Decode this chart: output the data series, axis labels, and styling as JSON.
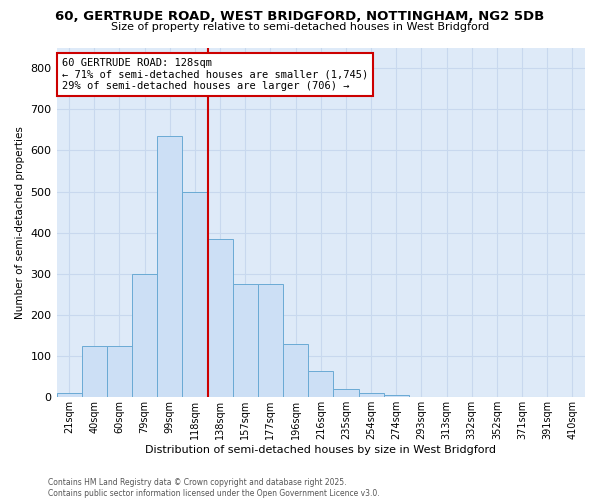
{
  "title_line1": "60, GERTRUDE ROAD, WEST BRIDGFORD, NOTTINGHAM, NG2 5DB",
  "title_line2": "Size of property relative to semi-detached houses in West Bridgford",
  "xlabel": "Distribution of semi-detached houses by size in West Bridgford",
  "ylabel": "Number of semi-detached properties",
  "footer_line1": "Contains HM Land Registry data © Crown copyright and database right 2025.",
  "footer_line2": "Contains public sector information licensed under the Open Government Licence v3.0.",
  "bin_labels": [
    "21sqm",
    "40sqm",
    "60sqm",
    "79sqm",
    "99sqm",
    "118sqm",
    "138sqm",
    "157sqm",
    "177sqm",
    "196sqm",
    "216sqm",
    "235sqm",
    "254sqm",
    "274sqm",
    "293sqm",
    "313sqm",
    "332sqm",
    "352sqm",
    "371sqm",
    "391sqm",
    "410sqm"
  ],
  "bar_values": [
    10,
    125,
    125,
    300,
    635,
    500,
    385,
    275,
    275,
    130,
    65,
    20,
    10,
    5,
    0,
    0,
    0,
    0,
    0,
    0,
    0
  ],
  "bar_color": "#ccdff5",
  "bar_edge_color": "#6aaad4",
  "property_line_x": 5.5,
  "annotation_text_line1": "60 GERTRUDE ROAD: 128sqm",
  "annotation_text_line2": "← 71% of semi-detached houses are smaller (1,745)",
  "annotation_text_line3": "29% of semi-detached houses are larger (706) →",
  "annotation_box_color": "#ffffff",
  "annotation_box_edge": "#cc0000",
  "vline_color": "#cc0000",
  "ylim": [
    0,
    850
  ],
  "yticks": [
    0,
    100,
    200,
    300,
    400,
    500,
    600,
    700,
    800
  ],
  "grid_color": "#c8d8ee",
  "background_color": "#deeaf8"
}
